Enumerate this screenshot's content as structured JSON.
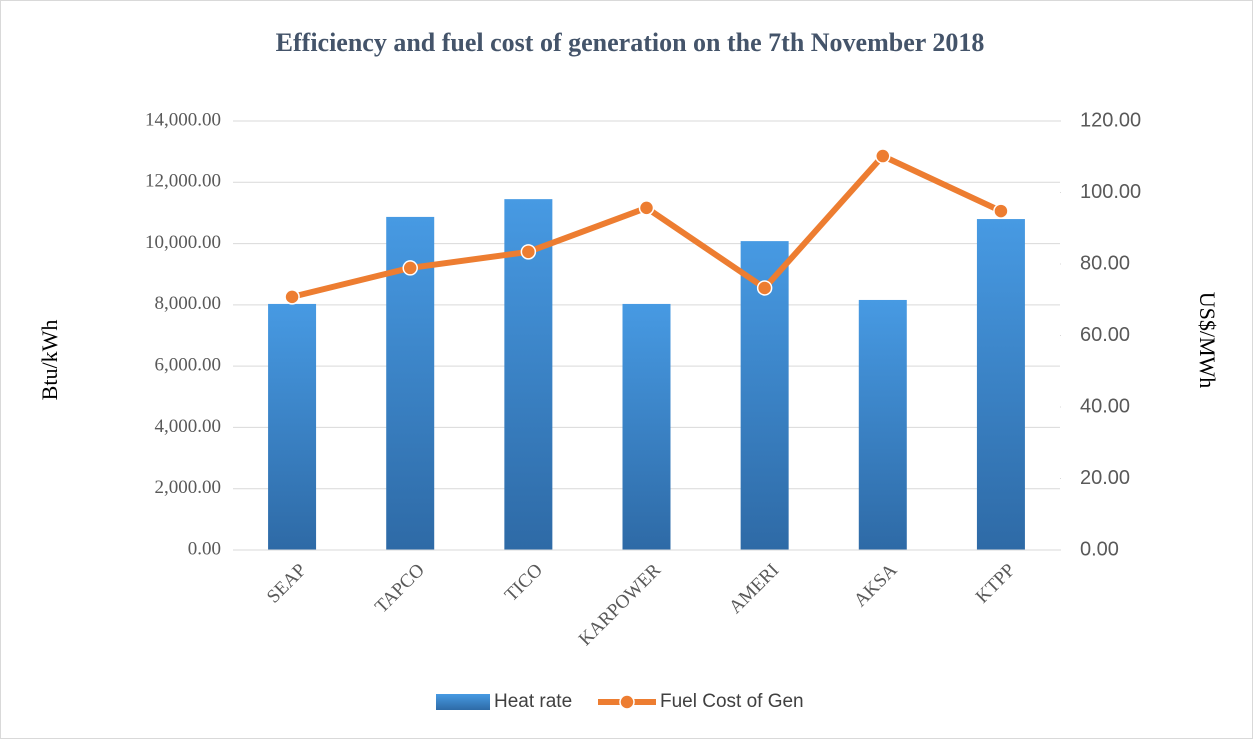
{
  "chart_data": {
    "type": "bar",
    "title": "Efficiency and fuel cost of  generation on the 7th November 2018",
    "ylabel": "Btu/kWh",
    "y2label": "US$/MWh",
    "categories": [
      "SEAP",
      "TAPCO",
      "TICO",
      "KARPOWER",
      "AMERI",
      "AKSA",
      "KTPP"
    ],
    "series": [
      {
        "name": "Heat rate",
        "type": "bar",
        "color": "#3f8fd9",
        "values": [
          8030,
          10870,
          11450,
          8030,
          10080,
          8160,
          10800
        ]
      },
      {
        "name": "Fuel Cost of Gen",
        "type": "line",
        "axis": "y2",
        "color": "#ed7d31",
        "values": [
          70.8,
          78.9,
          83.4,
          95.7,
          73.3,
          110.2,
          94.8
        ]
      }
    ],
    "ylim": [
      0,
      14000
    ],
    "yticks": [
      {
        "value": 0,
        "label": "0.00"
      },
      {
        "value": 2000,
        "label": "2,000.00"
      },
      {
        "value": 4000,
        "label": "4,000.00"
      },
      {
        "value": 6000,
        "label": "6,000.00"
      },
      {
        "value": 8000,
        "label": "8,000.00"
      },
      {
        "value": 10000,
        "label": "10,000.00"
      },
      {
        "value": 12000,
        "label": "12,000.00"
      },
      {
        "value": 14000,
        "label": "14,000.00"
      }
    ],
    "y2lim": [
      0,
      120
    ],
    "y2ticks": [
      {
        "value": 0,
        "label": "0.00"
      },
      {
        "value": 20,
        "label": "20.00"
      },
      {
        "value": 40,
        "label": "40.00"
      },
      {
        "value": 60,
        "label": "60.00"
      },
      {
        "value": 80,
        "label": "80.00"
      },
      {
        "value": 100,
        "label": "100.00"
      },
      {
        "value": 120,
        "label": "120.00"
      }
    ],
    "grid": true,
    "legend": "bottom"
  }
}
